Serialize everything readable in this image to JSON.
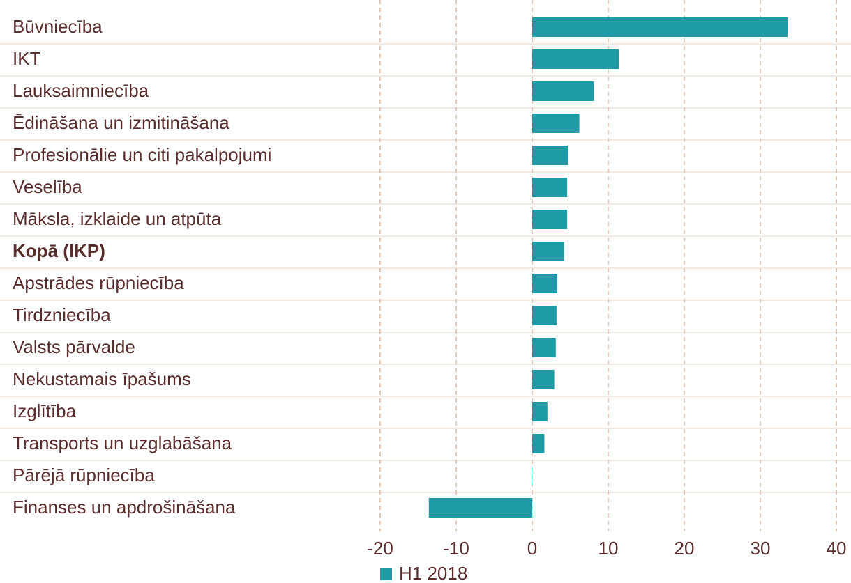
{
  "chart_data": {
    "type": "barh",
    "categories": [
      "Būvniecība",
      "IKT",
      "Lauksaimniecība",
      "Ēdināšana un izmitināšana",
      "Profesionālie un citi pakalpojumi",
      "Veselība",
      "Māksla, izklaide un atpūta",
      "Kopā (IKP)",
      "Apstrādes rūpniecība",
      "Tirdzniecība",
      "Valsts pārvalde",
      "Nekustamais īpašums",
      "Izglītība",
      "Transports un uzglabāšana",
      "Pārējā rūpniecība",
      "Finanses un apdrošināšana"
    ],
    "series": [
      {
        "name": "H1 2018",
        "color": "#1f9ba5",
        "values": [
          33.6,
          11.4,
          8.1,
          6.2,
          4.7,
          4.6,
          4.6,
          4.2,
          3.3,
          3.2,
          3.1,
          2.9,
          2.0,
          1.6,
          -0.1,
          -13.6
        ]
      }
    ],
    "xlim": [
      -20,
      40
    ],
    "xticks": [
      -20,
      -10,
      0,
      10,
      20,
      30,
      40
    ],
    "grid": true,
    "legend": "bottom"
  }
}
